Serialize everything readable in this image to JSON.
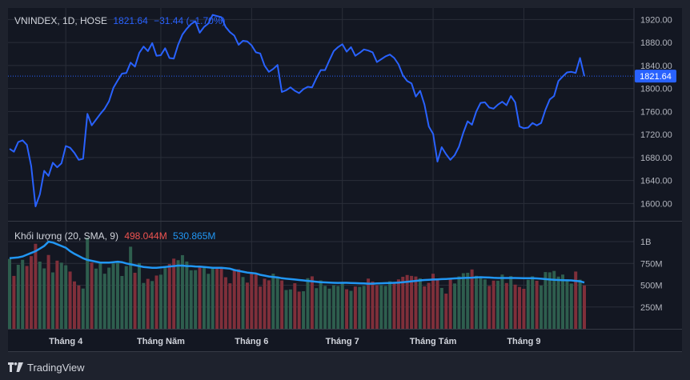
{
  "colors": {
    "background": "#131722",
    "frame": "#1e222d",
    "border": "#363a45",
    "grid": "#2a2e39",
    "text": "#b2b5be",
    "line": "#2962ff",
    "down": "#ef5350",
    "up": "#26a69a",
    "price_label_bg": "#2962ff",
    "vol_up": "#2e5e4e",
    "vol_down": "#7f2f3a",
    "sma": "#2196f3"
  },
  "legend": {
    "symbol": "VNINDEX, 1D, HOSE",
    "last": "1821.64",
    "change": "−31.44 (−1.70%)"
  },
  "volume_legend": {
    "label": "Khối lượng (20, SMA, 9)",
    "volume": "498.044M",
    "sma": "530.865M"
  },
  "price_label": "1821.64",
  "footer": {
    "brand": "TradingView"
  },
  "chart_data": [
    {
      "type": "line",
      "series": [
        {
          "name": "VNINDEX",
          "values": [
            1695,
            1690,
            1707,
            1710,
            1702,
            1665,
            1595,
            1616,
            1657,
            1648,
            1671,
            1663,
            1670,
            1700,
            1697,
            1688,
            1676,
            1678,
            1756,
            1736,
            1746,
            1756,
            1765,
            1778,
            1801,
            1814,
            1826,
            1827,
            1845,
            1838,
            1862,
            1873,
            1865,
            1879,
            1857,
            1858,
            1870,
            1853,
            1852,
            1876,
            1894,
            1904,
            1912,
            1917,
            1897,
            1907,
            1913,
            1928,
            1926,
            1924,
            1907,
            1898,
            1892,
            1876,
            1883,
            1882,
            1875,
            1863,
            1861,
            1840,
            1829,
            1834,
            1841,
            1794,
            1797,
            1802,
            1796,
            1792,
            1799,
            1803,
            1802,
            1818,
            1832,
            1832,
            1849,
            1865,
            1872,
            1877,
            1864,
            1872,
            1857,
            1862,
            1868,
            1866,
            1863,
            1846,
            1851,
            1856,
            1859,
            1853,
            1842,
            1823,
            1813,
            1809,
            1786,
            1796,
            1772,
            1734,
            1721,
            1673,
            1698,
            1686,
            1676,
            1684,
            1699,
            1723,
            1743,
            1737,
            1760,
            1775,
            1776,
            1767,
            1765,
            1772,
            1777,
            1771,
            1787,
            1776,
            1734,
            1731,
            1732,
            1740,
            1736,
            1740,
            1763,
            1781,
            1787,
            1813,
            1821,
            1828,
            1829,
            1827,
            1853,
            1821.64
          ]
        }
      ],
      "ylim": [
        1570,
        1940
      ],
      "y_ticks": [
        "1600.00",
        "1640.00",
        "1680.00",
        "1720.00",
        "1760.00",
        "1800.00",
        "1840.00",
        "1880.00",
        "1920.00"
      ],
      "x_ticks": [
        {
          "label": "Tháng 4",
          "index": 13
        },
        {
          "label": "Tháng Năm",
          "index": 35
        },
        {
          "label": "Tháng 6",
          "index": 56
        },
        {
          "label": "Tháng 7",
          "index": 77
        },
        {
          "label": "Tháng Tám",
          "index": 98
        },
        {
          "label": "Tháng 9",
          "index": 119
        }
      ]
    },
    {
      "type": "bar",
      "series": [
        {
          "name": "Khối lượng",
          "unit": "M",
          "values": [
            802,
            607,
            735,
            791,
            721,
            834,
            975,
            771,
            693,
            847,
            647,
            782,
            759,
            729,
            657,
            544,
            497,
            462,
            1045,
            760,
            691,
            768,
            632,
            702,
            750,
            759,
            606,
            720,
            942,
            643,
            754,
            526,
            573,
            548,
            611,
            621,
            697,
            743,
            805,
            787,
            845,
            772,
            671,
            673,
            707,
            699,
            631,
            693,
            696,
            690,
            592,
            522,
            678,
            683,
            594,
            530,
            638,
            623,
            484,
            575,
            556,
            632,
            595,
            555,
            445,
            452,
            523,
            427,
            431,
            581,
            602,
            466,
            555,
            493,
            461,
            500,
            491,
            523,
            454,
            436,
            485,
            481,
            493,
            576,
            542,
            501,
            500,
            492,
            545,
            532,
            567,
            597,
            617,
            607,
            600,
            579,
            487,
            527,
            632,
            566,
            469,
            404,
            564,
            520,
            601,
            638,
            643,
            681,
            608,
            596,
            567,
            492,
            553,
            552,
            622,
            525,
            605,
            507,
            480,
            459,
            563,
            602,
            551,
            496,
            651,
            648,
            664,
            599,
            622,
            568,
            519,
            657,
            564,
            498.044
          ]
        }
      ],
      "sma": [
        810,
        815,
        820,
        830,
        850,
        870,
        890,
        920,
        950,
        1000,
        990,
        970,
        950,
        930,
        890,
        860,
        835,
        810,
        790,
        780,
        770,
        760,
        760,
        760,
        765,
        770,
        765,
        750,
        740,
        730,
        720,
        710,
        705,
        700,
        700,
        705,
        710,
        715,
        720,
        725,
        725,
        720,
        720,
        715,
        713,
        710,
        705,
        700,
        700,
        700,
        695,
        690,
        675,
        665,
        655,
        645,
        640,
        635,
        620,
        610,
        600,
        595,
        590,
        580,
        575,
        570,
        565,
        560,
        555,
        550,
        545,
        540,
        535,
        532,
        530,
        528,
        527,
        528,
        528,
        526,
        524,
        522,
        520,
        518,
        518,
        520,
        522,
        524,
        526,
        528,
        530,
        535,
        540,
        545,
        550,
        555,
        560,
        563,
        565,
        567,
        570,
        572,
        575,
        578,
        580,
        583,
        585,
        587,
        590,
        592,
        590,
        588,
        585,
        583,
        583,
        583,
        583,
        583,
        582,
        581,
        581,
        580,
        578,
        575,
        570,
        565,
        562,
        560,
        558,
        556,
        555,
        550,
        545,
        530.865
      ],
      "y_ticks": [
        "250M",
        "500M",
        "750M",
        "1B"
      ],
      "ylim": [
        0,
        1230
      ]
    }
  ]
}
